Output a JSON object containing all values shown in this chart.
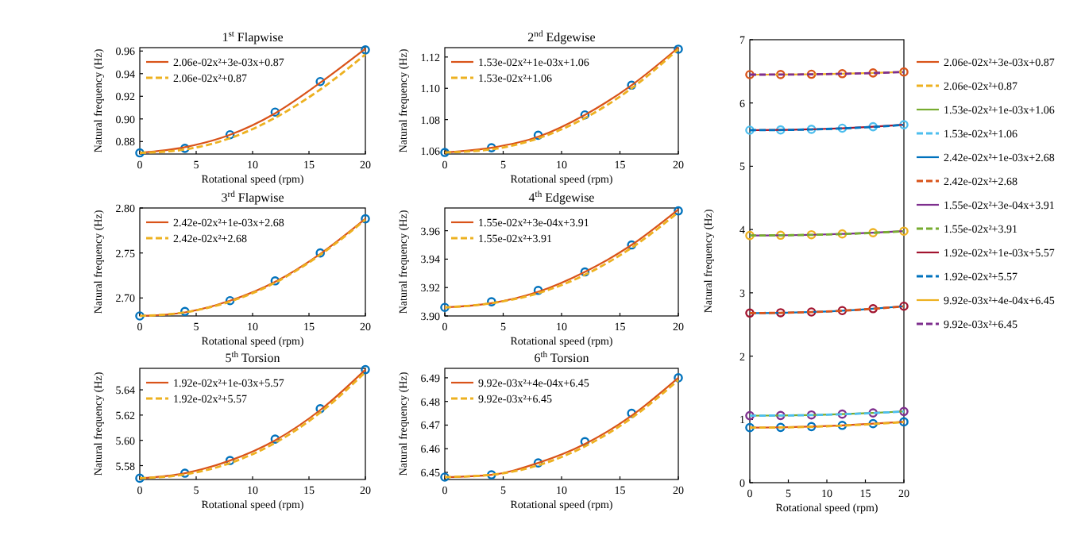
{
  "chart_data": [
    {
      "type": "line",
      "title": "1$^{st}$ Flapwise",
      "xlabel": "Rotational speed (rpm)",
      "ylabel": "Natural frequency (Hz)",
      "x": [
        0,
        4,
        8,
        12,
        16,
        20
      ],
      "xlim": [
        0,
        20
      ],
      "xticks": [
        0,
        5,
        10,
        15,
        20
      ],
      "ylim": [
        0.869,
        0.963
      ],
      "yticks": [
        0.88,
        {
          "value": 0.9,
          "label": "0.90"
        },
        0.92,
        0.94,
        0.96
      ],
      "legend": "top left",
      "series": [
        {
          "type": "scatter",
          "marker": "circle",
          "color": "#0072bd",
          "values": [
            0.87,
            0.874,
            0.886,
            0.906,
            0.933,
            0.961
          ]
        },
        {
          "name": "2.06e-02x²+3e-03x+0.87",
          "color": "#d95319",
          "line_style": "solid",
          "values": [
            0.87,
            0.875,
            0.886,
            0.905,
            0.932,
            0.962
          ]
        },
        {
          "name": "2.06e-02x²+0.87",
          "color": "#edb120",
          "line_style": "dashed",
          "values": [
            0.87,
            0.873,
            0.883,
            0.901,
            0.926,
            0.957
          ]
        }
      ]
    },
    {
      "type": "line",
      "title": "2$^{nd}$ Edgewise",
      "xlabel": "Rotational speed (rpm)",
      "ylabel": "Natural frequency (Hz)",
      "x": [
        0,
        4,
        8,
        12,
        16,
        20
      ],
      "xlim": [
        0,
        20
      ],
      "xticks": [
        0,
        5,
        10,
        15,
        20
      ],
      "ylim": [
        1.058,
        1.126
      ],
      "yticks": [
        1.06,
        1.08,
        {
          "value": 1.1,
          "label": "1.10"
        },
        1.12
      ],
      "legend": "top left",
      "series": [
        {
          "type": "scatter",
          "marker": "circle",
          "color": "#0072bd",
          "values": [
            1.059,
            1.062,
            1.07,
            1.083,
            1.102,
            1.125
          ]
        },
        {
          "name": "1.53e-02x²+1e-03x+1.06",
          "color": "#d95319",
          "line_style": "solid",
          "values": [
            1.059,
            1.062,
            1.069,
            1.083,
            1.102,
            1.126
          ]
        },
        {
          "name": "1.53e-02x²+1.06",
          "color": "#edb120",
          "line_style": "dashed",
          "values": [
            1.059,
            1.061,
            1.068,
            1.081,
            1.1,
            1.125
          ]
        }
      ]
    },
    {
      "type": "line",
      "title": "3$^{rd}$ Flapwise",
      "xlabel": "Rotational speed (rpm)",
      "ylabel": "Natural frequency (Hz)",
      "x": [
        0,
        4,
        8,
        12,
        16,
        20
      ],
      "xlim": [
        0,
        20
      ],
      "xticks": [
        0,
        5,
        10,
        15,
        20
      ],
      "ylim": [
        2.68,
        2.8
      ],
      "yticks": [
        {
          "value": 2.7,
          "label": "2.70"
        },
        2.75,
        {
          "value": 2.8,
          "label": "2.80"
        }
      ],
      "legend": "top left",
      "series": [
        {
          "type": "scatter",
          "marker": "circle",
          "color": "#0072bd",
          "values": [
            2.68,
            2.685,
            2.697,
            2.719,
            2.75,
            2.788
          ]
        },
        {
          "name": "2.42e-02x²+1e-03x+2.68",
          "color": "#d95319",
          "line_style": "solid",
          "values": [
            2.68,
            2.684,
            2.697,
            2.718,
            2.749,
            2.788
          ]
        },
        {
          "name": "2.42e-02x²+2.68",
          "color": "#edb120",
          "line_style": "dashed",
          "values": [
            2.68,
            2.684,
            2.696,
            2.717,
            2.748,
            2.787
          ]
        }
      ]
    },
    {
      "type": "line",
      "title": "4$^{th}$ Edgewise",
      "xlabel": "Rotational speed (rpm)",
      "ylabel": "Natural frequency (Hz)",
      "x": [
        0,
        4,
        8,
        12,
        16,
        20
      ],
      "xlim": [
        0,
        20
      ],
      "xticks": [
        0,
        5,
        10,
        15,
        20
      ],
      "ylim": [
        3.9,
        3.976
      ],
      "yticks": [
        {
          "value": 3.9,
          "label": "3.90"
        },
        3.92,
        3.94,
        3.96
      ],
      "legend": "top left",
      "series": [
        {
          "type": "scatter",
          "marker": "circle",
          "color": "#0072bd",
          "values": [
            3.906,
            3.91,
            3.918,
            3.931,
            3.95,
            3.974
          ]
        },
        {
          "name": "1.55e-02x²+3e-04x+3.91",
          "color": "#d95319",
          "line_style": "solid",
          "values": [
            3.906,
            3.909,
            3.917,
            3.931,
            3.95,
            3.975
          ]
        },
        {
          "name": "1.55e-02x²+3.91",
          "color": "#edb120",
          "line_style": "dashed",
          "values": [
            3.906,
            3.909,
            3.916,
            3.929,
            3.948,
            3.973
          ]
        }
      ]
    },
    {
      "type": "line",
      "title": "5$^{th}$ Torsion",
      "xlabel": "Rotational speed (rpm)",
      "ylabel": "Natural frequency (Hz)",
      "x": [
        0,
        4,
        8,
        12,
        16,
        20
      ],
      "xlim": [
        0,
        20
      ],
      "xticks": [
        0,
        5,
        10,
        15,
        20
      ],
      "ylim": [
        5.569,
        5.657
      ],
      "yticks": [
        5.58,
        {
          "value": 5.6,
          "label": "5.60"
        },
        5.62,
        5.64
      ],
      "legend": "top left",
      "series": [
        {
          "type": "scatter",
          "marker": "circle",
          "color": "#0072bd",
          "values": [
            5.57,
            5.574,
            5.584,
            5.601,
            5.625,
            5.656
          ]
        },
        {
          "name": "1.92e-02x²+1e-03x+5.57",
          "color": "#d95319",
          "line_style": "solid",
          "values": [
            5.57,
            5.574,
            5.584,
            5.6,
            5.624,
            5.656
          ]
        },
        {
          "name": "1.92e-02x²+5.57",
          "color": "#edb120",
          "line_style": "dashed",
          "values": [
            5.57,
            5.573,
            5.582,
            5.598,
            5.622,
            5.654
          ]
        }
      ]
    },
    {
      "type": "line",
      "title": "6$^{th}$ Torsion",
      "xlabel": "Rotational speed (rpm)",
      "ylabel": "Natural frequency (Hz)",
      "x": [
        0,
        4,
        8,
        12,
        16,
        20
      ],
      "xlim": [
        0,
        20
      ],
      "xticks": [
        0,
        5,
        10,
        15,
        20
      ],
      "ylim": [
        6.447,
        6.494
      ],
      "yticks": [
        6.45,
        6.46,
        6.47,
        6.48,
        6.49
      ],
      "legend": "top left",
      "series": [
        {
          "type": "scatter",
          "marker": "circle",
          "color": "#0072bd",
          "values": [
            6.448,
            6.449,
            6.454,
            6.463,
            6.475,
            6.49
          ]
        },
        {
          "name": "9.92e-03x²+4e-04x+6.45",
          "color": "#d95319",
          "line_style": "solid",
          "values": [
            6.448,
            6.449,
            6.454,
            6.462,
            6.474,
            6.49
          ]
        },
        {
          "name": "9.92e-03x²+6.45",
          "color": "#edb120",
          "line_style": "dashed",
          "values": [
            6.448,
            6.449,
            6.453,
            6.461,
            6.473,
            6.489
          ]
        }
      ]
    },
    {
      "type": "line",
      "xlabel": "Rotational speed (rpm)",
      "ylabel": "Natural frequency (Hz)",
      "x": [
        0,
        4,
        8,
        12,
        16,
        20
      ],
      "xlim": [
        0,
        20
      ],
      "xticks": [
        0,
        5,
        10,
        15,
        20
      ],
      "ylim": [
        0,
        7
      ],
      "yticks": [
        0,
        1,
        2,
        3,
        4,
        5,
        6,
        7
      ],
      "legend": "right",
      "series": [
        {
          "type": "scatter",
          "marker": "circle",
          "color": "#0072bd",
          "values": [
            0.87,
            0.874,
            0.886,
            0.906,
            0.933,
            0.961
          ]
        },
        {
          "name": "2.06e-02x²+3e-03x+0.87",
          "color": "#d95319",
          "line_style": "solid",
          "values": [
            0.87,
            0.875,
            0.886,
            0.905,
            0.932,
            0.962
          ]
        },
        {
          "name": "2.06e-02x²+0.87",
          "color": "#edb120",
          "line_style": "dashed",
          "values": [
            0.87,
            0.873,
            0.883,
            0.901,
            0.926,
            0.957
          ]
        },
        {
          "type": "scatter",
          "marker": "circle",
          "color": "#7e2f8e",
          "values": [
            1.059,
            1.062,
            1.07,
            1.083,
            1.102,
            1.125
          ]
        },
        {
          "name": "1.53e-02x²+1e-03x+1.06",
          "color": "#77ac30",
          "line_style": "solid",
          "values": [
            1.059,
            1.062,
            1.069,
            1.083,
            1.102,
            1.126
          ]
        },
        {
          "name": "1.53e-02x²+1.06",
          "color": "#4dbeee",
          "line_style": "dashed",
          "values": [
            1.059,
            1.061,
            1.068,
            1.081,
            1.1,
            1.125
          ]
        },
        {
          "type": "scatter",
          "marker": "circle",
          "color": "#a2142f",
          "values": [
            2.68,
            2.685,
            2.697,
            2.719,
            2.75,
            2.788
          ]
        },
        {
          "name": "2.42e-02x²+1e-03x+2.68",
          "color": "#0072bd",
          "line_style": "solid",
          "values": [
            2.68,
            2.684,
            2.697,
            2.718,
            2.749,
            2.788
          ]
        },
        {
          "name": "2.42e-02x²+2.68",
          "color": "#d95319",
          "line_style": "dashed",
          "values": [
            2.68,
            2.684,
            2.696,
            2.717,
            2.748,
            2.787
          ]
        },
        {
          "type": "scatter",
          "marker": "circle",
          "color": "#edb120",
          "values": [
            3.906,
            3.91,
            3.918,
            3.931,
            3.95,
            3.974
          ]
        },
        {
          "name": "1.55e-02x²+3e-04x+3.91",
          "color": "#7e2f8e",
          "line_style": "solid",
          "values": [
            3.906,
            3.909,
            3.917,
            3.931,
            3.95,
            3.975
          ]
        },
        {
          "name": "1.55e-02x²+3.91",
          "color": "#77ac30",
          "line_style": "dashed",
          "values": [
            3.906,
            3.909,
            3.916,
            3.929,
            3.948,
            3.973
          ]
        },
        {
          "type": "scatter",
          "marker": "circle",
          "color": "#4dbeee",
          "values": [
            5.57,
            5.574,
            5.584,
            5.601,
            5.625,
            5.656
          ]
        },
        {
          "name": "1.92e-02x²+1e-03x+5.57",
          "color": "#a2142f",
          "line_style": "solid",
          "values": [
            5.57,
            5.574,
            5.584,
            5.6,
            5.624,
            5.656
          ]
        },
        {
          "name": "1.92e-02x²+5.57",
          "color": "#0072bd",
          "line_style": "dashed",
          "values": [
            5.57,
            5.573,
            5.582,
            5.598,
            5.622,
            5.654
          ]
        },
        {
          "type": "scatter",
          "marker": "circle",
          "color": "#d95319",
          "values": [
            6.448,
            6.449,
            6.454,
            6.463,
            6.475,
            6.49
          ]
        },
        {
          "name": "9.92e-03x²+4e-04x+6.45",
          "color": "#edb120",
          "line_style": "solid",
          "values": [
            6.448,
            6.449,
            6.454,
            6.462,
            6.474,
            6.49
          ]
        },
        {
          "name": "9.92e-03x²+6.45",
          "color": "#7e2f8e",
          "line_style": "dashed",
          "values": [
            6.448,
            6.449,
            6.453,
            6.461,
            6.473,
            6.489
          ]
        }
      ]
    }
  ]
}
